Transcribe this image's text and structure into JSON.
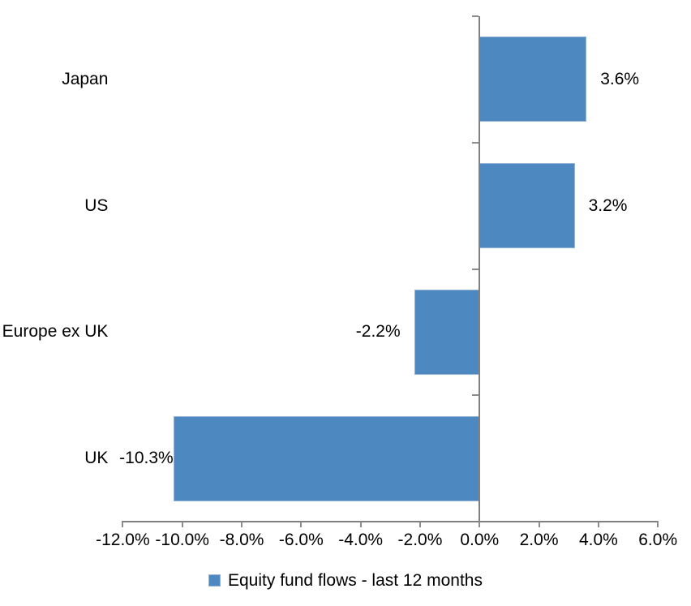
{
  "chart_data": {
    "type": "bar",
    "orientation": "horizontal",
    "categories": [
      "Japan",
      "US",
      "Europe ex UK",
      "UK"
    ],
    "values": [
      3.6,
      3.2,
      -2.2,
      -10.3
    ],
    "data_labels": [
      "3.6%",
      "3.2%",
      "-2.2%",
      "-10.3%"
    ],
    "title": "",
    "xlabel": "",
    "ylabel": "",
    "x_axis": {
      "min": -12,
      "max": 6,
      "step": 2,
      "tick_labels": [
        "-12.0%",
        "-10.0%",
        "-8.0%",
        "-6.0%",
        "-4.0%",
        "-2.0%",
        "0.0%",
        "2.0%",
        "4.0%",
        "6.0%"
      ]
    },
    "grid": false,
    "legend_position": "bottom",
    "series": [
      {
        "name": "Equity fund flows - last 12 months",
        "values": [
          3.6,
          3.2,
          -2.2,
          -10.3
        ]
      }
    ],
    "colors": {
      "bar_fill": "#4E88C0",
      "bar_border": "#95B3D7",
      "axis": "#808080",
      "tick": "#8c8c8c",
      "text": "#000000",
      "background": "#FFFFFF"
    }
  },
  "legend": {
    "label": "Equity fund flows - last 12 months"
  }
}
